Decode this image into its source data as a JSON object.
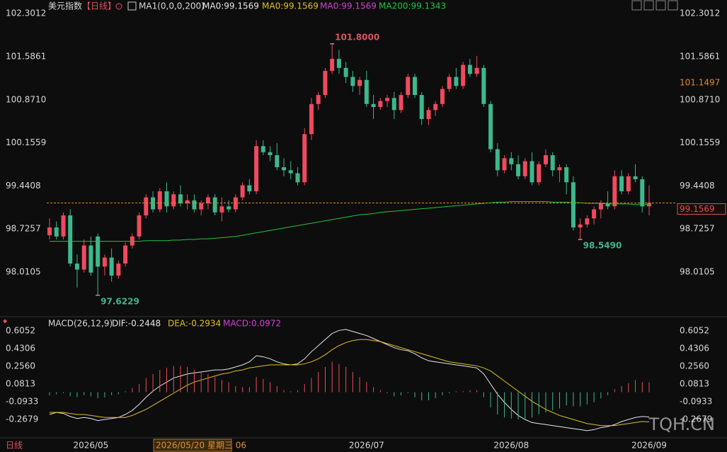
{
  "header": {
    "name": "美元指数",
    "period": "【日线】",
    "indicator": "MA1(0,0,0,200)",
    "legend": [
      {
        "text": "MA0:99.1569",
        "color": "#e6e6e6"
      },
      {
        "text": "MA0:99.1569",
        "color": "#e0c020"
      },
      {
        "text": "MA0:99.1569",
        "color": "#d040d0"
      }
    ]
  },
  "chart_data": [
    {
      "type": "candlestick",
      "up_color": "#f04a5e",
      "down_color": "#3cb88c",
      "categories": [
        null,
        null,
        null,
        null,
        null,
        null,
        "2026/05",
        null,
        null,
        null,
        null,
        null,
        null,
        null,
        null,
        null,
        null,
        null,
        null,
        null,
        null,
        null,
        null,
        null,
        null,
        null,
        null,
        null,
        null,
        null,
        null,
        null,
        null,
        null,
        null,
        null,
        null,
        null,
        null,
        null,
        null,
        null,
        null,
        null,
        null,
        null,
        "2026/07",
        null,
        null,
        null,
        null,
        null,
        null,
        null,
        null,
        null,
        null,
        null,
        null,
        null,
        null,
        null,
        null,
        null,
        null,
        null,
        null,
        "2026/08",
        null,
        null,
        null,
        null,
        null,
        null,
        null,
        null,
        null,
        null,
        null,
        null,
        null,
        null,
        null,
        null,
        null,
        null,
        null,
        "2026/09"
      ],
      "ohlc": [
        [
          98.62,
          98.9,
          98.55,
          98.75
        ],
        [
          98.75,
          98.85,
          98.55,
          98.6
        ],
        [
          98.6,
          99.0,
          98.55,
          98.95
        ],
        [
          98.95,
          99.05,
          98.1,
          98.15
        ],
        [
          98.15,
          98.3,
          97.75,
          98.05
        ],
        [
          98.05,
          98.55,
          98.0,
          98.45
        ],
        [
          98.45,
          98.6,
          97.95,
          98.0
        ],
        [
          98.6,
          98.65,
          97.6229,
          98.1
        ],
        [
          98.1,
          98.3,
          97.95,
          98.25
        ],
        [
          98.25,
          98.4,
          97.85,
          97.95
        ],
        [
          97.95,
          98.2,
          97.9,
          98.15
        ],
        [
          98.15,
          98.5,
          98.1,
          98.45
        ],
        [
          98.45,
          98.65,
          98.4,
          98.6
        ],
        [
          98.6,
          99.0,
          98.55,
          98.95
        ],
        [
          98.95,
          99.3,
          98.9,
          99.25
        ],
        [
          99.25,
          99.35,
          99.0,
          99.05
        ],
        [
          99.05,
          99.4,
          99.0,
          99.35
        ],
        [
          99.35,
          99.5,
          99.0,
          99.1
        ],
        [
          99.1,
          99.35,
          99.05,
          99.3
        ],
        [
          99.3,
          99.45,
          99.1,
          99.15
        ],
        [
          99.15,
          99.3,
          99.05,
          99.2
        ],
        [
          99.2,
          99.3,
          99.0,
          99.05
        ],
        [
          99.05,
          99.2,
          98.95,
          99.15
        ],
        [
          99.15,
          99.3,
          99.05,
          99.25
        ],
        [
          99.25,
          99.3,
          98.95,
          99.0
        ],
        [
          99.0,
          99.25,
          98.85,
          99.1
        ],
        [
          99.1,
          99.2,
          99.0,
          99.05
        ],
        [
          99.05,
          99.3,
          99.0,
          99.25
        ],
        [
          99.25,
          99.5,
          99.2,
          99.45
        ],
        [
          99.45,
          99.55,
          99.3,
          99.35
        ],
        [
          99.35,
          100.2,
          99.3,
          100.1
        ],
        [
          100.1,
          100.2,
          99.95,
          100.0
        ],
        [
          100.0,
          100.1,
          99.85,
          99.95
        ],
        [
          99.95,
          100.15,
          99.7,
          99.75
        ],
        [
          99.75,
          99.9,
          99.6,
          99.7
        ],
        [
          99.7,
          99.85,
          99.55,
          99.65
        ],
        [
          99.65,
          99.75,
          99.45,
          99.5
        ],
        [
          99.5,
          100.4,
          99.45,
          100.3
        ],
        [
          100.3,
          100.9,
          100.2,
          100.8
        ],
        [
          100.8,
          101.0,
          100.7,
          100.95
        ],
        [
          100.95,
          101.4,
          100.9,
          101.35
        ],
        [
          101.35,
          101.8,
          101.3,
          101.55
        ],
        [
          101.55,
          101.7,
          101.3,
          101.4
        ],
        [
          101.4,
          101.5,
          101.15,
          101.25
        ],
        [
          101.25,
          101.35,
          101.0,
          101.1
        ],
        [
          101.1,
          101.25,
          100.95,
          101.2
        ],
        [
          101.2,
          101.35,
          100.75,
          100.8
        ],
        [
          100.8,
          100.95,
          100.55,
          100.75
        ],
        [
          100.75,
          100.9,
          100.7,
          100.85
        ],
        [
          100.85,
          100.95,
          100.75,
          100.9
        ],
        [
          100.9,
          101.0,
          100.55,
          100.7
        ],
        [
          100.7,
          101.0,
          100.65,
          100.95
        ],
        [
          100.95,
          101.3,
          100.9,
          101.25
        ],
        [
          101.25,
          101.3,
          100.9,
          100.95
        ],
        [
          100.95,
          101.0,
          100.45,
          100.55
        ],
        [
          100.55,
          100.75,
          100.45,
          100.7
        ],
        [
          100.7,
          100.85,
          100.6,
          100.8
        ],
        [
          100.8,
          101.1,
          100.75,
          101.05
        ],
        [
          101.05,
          101.3,
          101.0,
          101.25
        ],
        [
          101.25,
          101.4,
          101.05,
          101.1
        ],
        [
          101.1,
          101.5,
          101.05,
          101.45
        ],
        [
          101.45,
          101.55,
          101.25,
          101.3
        ],
        [
          101.3,
          101.6,
          101.25,
          101.4
        ],
        [
          101.4,
          101.45,
          100.75,
          100.8
        ],
        [
          100.8,
          100.85,
          100.0,
          100.05
        ],
        [
          100.05,
          100.15,
          99.6,
          99.7
        ],
        [
          99.7,
          99.95,
          99.65,
          99.9
        ],
        [
          99.9,
          100.0,
          99.7,
          99.8
        ],
        [
          99.8,
          99.95,
          99.55,
          99.6
        ],
        [
          99.6,
          99.9,
          99.55,
          99.85
        ],
        [
          99.85,
          100.0,
          99.45,
          99.5
        ],
        [
          99.5,
          99.85,
          99.45,
          99.8
        ],
        [
          99.8,
          100.05,
          99.75,
          99.95
        ],
        [
          99.95,
          100.0,
          99.6,
          99.7
        ],
        [
          99.7,
          99.8,
          99.5,
          99.75
        ],
        [
          99.75,
          99.8,
          99.3,
          99.5
        ],
        [
          99.5,
          99.6,
          98.7,
          98.75
        ],
        [
          98.75,
          98.9,
          98.549,
          98.8
        ],
        [
          98.8,
          98.95,
          98.75,
          98.9
        ],
        [
          98.9,
          99.1,
          98.8,
          99.05
        ],
        [
          99.05,
          99.2,
          98.9,
          99.15
        ],
        [
          99.15,
          99.35,
          99.05,
          99.1
        ],
        [
          99.1,
          99.7,
          99.05,
          99.6
        ],
        [
          99.6,
          99.7,
          99.3,
          99.35
        ],
        [
          99.35,
          99.65,
          99.3,
          99.6
        ],
        [
          99.6,
          99.8,
          99.5,
          99.55
        ],
        [
          99.55,
          99.6,
          99.0,
          99.1
        ],
        [
          99.1,
          99.45,
          98.95,
          99.1569
        ]
      ],
      "series": [
        {
          "name": "MA200:99.1343",
          "color": "#22c43c",
          "values": [
            98.52,
            98.52,
            98.52,
            98.52,
            98.52,
            98.52,
            98.52,
            98.52,
            98.52,
            98.52,
            98.52,
            98.52,
            98.52,
            98.52,
            98.53,
            98.53,
            98.53,
            98.53,
            98.54,
            98.54,
            98.55,
            98.55,
            98.56,
            98.56,
            98.57,
            98.58,
            98.59,
            98.6,
            98.62,
            98.64,
            98.66,
            98.68,
            98.7,
            98.72,
            98.74,
            98.76,
            98.78,
            98.8,
            98.82,
            98.84,
            98.86,
            98.88,
            98.9,
            98.92,
            98.94,
            98.96,
            98.97,
            98.98,
            99.0,
            99.01,
            99.02,
            99.03,
            99.04,
            99.05,
            99.06,
            99.07,
            99.08,
            99.09,
            99.1,
            99.11,
            99.12,
            99.13,
            99.14,
            99.15,
            99.16,
            99.17,
            99.17,
            99.18,
            99.18,
            99.18,
            99.18,
            99.18,
            99.18,
            99.17,
            99.17,
            99.17,
            99.16,
            99.16,
            99.15,
            99.15,
            99.15,
            99.14,
            99.14,
            99.14,
            99.14,
            99.13,
            99.13,
            99.1343
          ]
        }
      ],
      "ylim": [
        97.35,
        102.41
      ],
      "yticks": [
        102.3012,
        101.5861,
        {
          "value": 100.871,
          "label": "100.8710"
        },
        100.1559,
        99.4408,
        98.7257,
        98.0105
      ],
      "price_markers": [
        {
          "value": 101.1497,
          "label": "101.1497",
          "color": "#e08a20"
        },
        {
          "value": 99.1569,
          "label": "99.1569",
          "color": "#e05050"
        }
      ],
      "annotations": [
        {
          "text": "101.8000",
          "candle": 41,
          "at": "high",
          "color": "#e05060"
        },
        {
          "text": "97.6229",
          "candle": 7,
          "at": "low",
          "color": "#3cb88c"
        },
        {
          "text": "98.5490",
          "candle": 77,
          "at": "low",
          "color": "#3cb88c"
        }
      ]
    },
    {
      "type": "macd",
      "title": "MACD(26,12,9)",
      "series": [
        {
          "name": "DIF:-0.2448",
          "color": "#e6e6e6",
          "values": [
            -0.22,
            -0.2,
            -0.21,
            -0.24,
            -0.26,
            -0.25,
            -0.26,
            -0.28,
            -0.27,
            -0.26,
            -0.25,
            -0.22,
            -0.18,
            -0.12,
            -0.05,
            0.01,
            0.06,
            0.1,
            0.14,
            0.16,
            0.18,
            0.19,
            0.2,
            0.21,
            0.22,
            0.22,
            0.23,
            0.25,
            0.27,
            0.3,
            0.36,
            0.35,
            0.33,
            0.3,
            0.28,
            0.27,
            0.28,
            0.33,
            0.4,
            0.46,
            0.52,
            0.58,
            0.61,
            0.62,
            0.6,
            0.58,
            0.56,
            0.53,
            0.5,
            0.47,
            0.44,
            0.42,
            0.41,
            0.38,
            0.34,
            0.31,
            0.3,
            0.29,
            0.28,
            0.27,
            0.26,
            0.25,
            0.24,
            0.18,
            0.08,
            -0.02,
            -0.1,
            -0.17,
            -0.23,
            -0.27,
            -0.3,
            -0.31,
            -0.32,
            -0.33,
            -0.34,
            -0.35,
            -0.36,
            -0.37,
            -0.38,
            -0.37,
            -0.35,
            -0.34,
            -0.32,
            -0.29,
            -0.27,
            -0.25,
            -0.24,
            -0.2448
          ]
        },
        {
          "name": "DEA:-0.2934",
          "color": "#e0c020",
          "values": [
            -0.2,
            -0.2,
            -0.2,
            -0.21,
            -0.22,
            -0.22,
            -0.23,
            -0.24,
            -0.25,
            -0.25,
            -0.25,
            -0.25,
            -0.23,
            -0.2,
            -0.17,
            -0.13,
            -0.09,
            -0.05,
            -0.01,
            0.03,
            0.07,
            0.1,
            0.12,
            0.14,
            0.16,
            0.18,
            0.19,
            0.21,
            0.22,
            0.24,
            0.25,
            0.26,
            0.27,
            0.27,
            0.27,
            0.27,
            0.27,
            0.28,
            0.3,
            0.33,
            0.37,
            0.42,
            0.46,
            0.49,
            0.51,
            0.52,
            0.52,
            0.51,
            0.5,
            0.48,
            0.46,
            0.44,
            0.42,
            0.4,
            0.38,
            0.36,
            0.34,
            0.32,
            0.3,
            0.29,
            0.28,
            0.27,
            0.26,
            0.24,
            0.21,
            0.16,
            0.11,
            0.06,
            0.01,
            -0.04,
            -0.09,
            -0.13,
            -0.17,
            -0.2,
            -0.23,
            -0.25,
            -0.27,
            -0.29,
            -0.31,
            -0.32,
            -0.33,
            -0.33,
            -0.33,
            -0.32,
            -0.31,
            -0.3,
            -0.29,
            -0.2934
          ]
        },
        {
          "name": "MACD:0.0972",
          "color": "#d040d0",
          "bars": true,
          "values": [
            -0.03,
            -0.02,
            -0.01,
            -0.04,
            -0.05,
            -0.03,
            -0.04,
            -0.06,
            -0.05,
            -0.03,
            -0.02,
            0.01,
            0.04,
            0.08,
            0.14,
            0.18,
            0.22,
            0.24,
            0.26,
            0.26,
            0.25,
            0.22,
            0.2,
            0.18,
            0.15,
            0.12,
            0.1,
            0.06,
            0.05,
            0.05,
            0.15,
            0.13,
            0.1,
            0.06,
            0.02,
            0.01,
            0.02,
            0.08,
            0.14,
            0.2,
            0.25,
            0.3,
            0.28,
            0.25,
            0.2,
            0.15,
            0.1,
            0.05,
            0.02,
            -0.01,
            -0.04,
            -0.03,
            -0.01,
            -0.05,
            -0.08,
            -0.08,
            -0.06,
            -0.03,
            -0.01,
            0.01,
            0.01,
            0.02,
            0.02,
            -0.05,
            -0.15,
            -0.22,
            -0.25,
            -0.26,
            -0.27,
            -0.26,
            -0.25,
            -0.22,
            -0.2,
            -0.18,
            -0.16,
            -0.13,
            -0.14,
            -0.14,
            -0.12,
            -0.1,
            -0.06,
            -0.03,
            0.03,
            0.06,
            0.09,
            0.12,
            0.1,
            0.0972
          ]
        }
      ],
      "ylim": [
        -0.43,
        0.69
      ],
      "yticks": [
        0.6052,
        0.4306,
        {
          "value": 0.256,
          "label": "0.2560"
        },
        0.0813,
        -0.0933,
        -0.2679
      ]
    }
  ],
  "footer": {
    "period": "日线",
    "cursor": "2026/05/20 星期三 06",
    "watermark": "TQH.CN"
  }
}
